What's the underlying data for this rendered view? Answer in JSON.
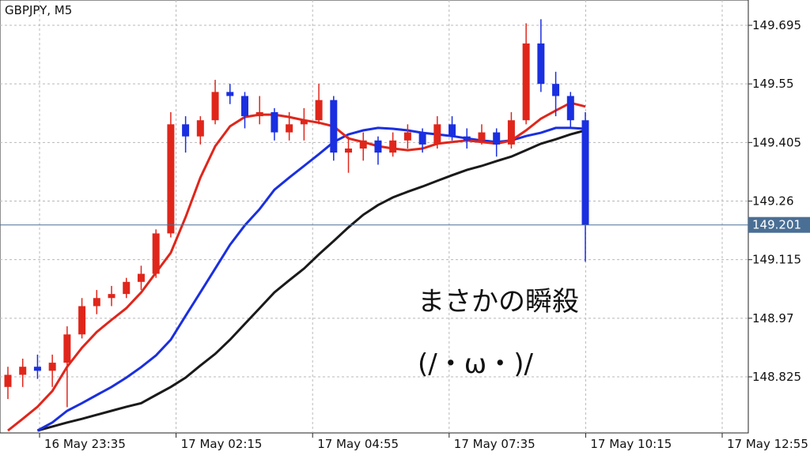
{
  "chart_data": {
    "type": "candlestick",
    "title": "GBPJPY, M5",
    "annotations": [
      "まさかの瞬殺",
      "(/・ω・)/"
    ],
    "ylim": [
      148.6862,
      149.7576
    ],
    "yticks": [
      148.825,
      148.97,
      149.115,
      149.26,
      149.405,
      149.55,
      149.695
    ],
    "last_price": 149.201,
    "x_axis_labels": [
      "16 May 23:35",
      "17 May 02:15",
      "17 May 04:55",
      "17 May 07:35",
      "17 May 10:15",
      "17 May 12:55"
    ],
    "grid": true,
    "up_color": "#e0261b",
    "down_color": "#1a2fe0",
    "candles": {
      "open": [
        148.8,
        148.83,
        148.85,
        148.84,
        148.86,
        148.93,
        149.0,
        149.02,
        149.03,
        149.06,
        149.08,
        149.18,
        149.45,
        149.42,
        149.46,
        149.53,
        149.52,
        149.47,
        149.48,
        149.43,
        149.45,
        149.46,
        149.51,
        149.38,
        149.39,
        149.41,
        149.38,
        149.41,
        149.43,
        149.4,
        149.45,
        149.42,
        149.41,
        149.43,
        149.4,
        149.46,
        149.65,
        149.55,
        149.52,
        149.46
      ],
      "high": [
        148.85,
        148.87,
        148.88,
        148.88,
        148.95,
        149.02,
        149.04,
        149.05,
        149.07,
        149.1,
        149.19,
        149.48,
        149.47,
        149.47,
        149.56,
        149.55,
        149.53,
        149.52,
        149.49,
        149.48,
        149.49,
        149.55,
        149.52,
        149.42,
        149.43,
        149.42,
        149.43,
        149.45,
        149.44,
        149.47,
        149.47,
        149.44,
        149.45,
        149.44,
        149.48,
        149.7,
        149.71,
        149.58,
        149.53,
        149.48
      ],
      "low": [
        148.77,
        148.8,
        148.82,
        148.8,
        148.75,
        148.92,
        148.98,
        149.0,
        149.02,
        149.04,
        149.07,
        149.17,
        149.38,
        149.4,
        149.45,
        149.5,
        149.44,
        149.45,
        149.41,
        149.41,
        149.41,
        149.45,
        149.36,
        149.33,
        149.36,
        149.35,
        149.37,
        149.39,
        149.38,
        149.39,
        149.41,
        149.39,
        149.4,
        149.37,
        149.39,
        149.45,
        149.53,
        149.47,
        149.44,
        149.11
      ],
      "close": [
        148.83,
        148.85,
        148.84,
        148.86,
        148.93,
        149.0,
        149.02,
        149.03,
        149.06,
        149.08,
        149.18,
        149.45,
        149.42,
        149.46,
        149.53,
        149.52,
        149.47,
        149.48,
        149.43,
        149.45,
        149.46,
        149.51,
        149.38,
        149.39,
        149.41,
        149.38,
        149.41,
        149.43,
        149.4,
        149.45,
        149.42,
        149.41,
        149.43,
        149.4,
        149.46,
        149.65,
        149.55,
        149.52,
        149.46,
        149.201
      ]
    },
    "series": [
      {
        "color": "#1a1a1a",
        "values": [
          null,
          null,
          148.692,
          148.702,
          148.712,
          148.721,
          148.731,
          148.741,
          148.751,
          148.76,
          148.78,
          148.8,
          148.823,
          148.853,
          148.882,
          148.917,
          148.956,
          148.995,
          149.034,
          149.064,
          149.093,
          149.128,
          149.161,
          149.195,
          149.226,
          149.25,
          149.269,
          149.283,
          149.296,
          149.31,
          149.324,
          149.337,
          149.347,
          149.359,
          149.37,
          149.386,
          149.402,
          149.413,
          149.425,
          149.435
        ]
      },
      {
        "color": "#1a2fe0",
        "values": [
          null,
          null,
          148.692,
          148.712,
          148.741,
          148.76,
          148.78,
          148.8,
          148.823,
          148.849,
          148.878,
          148.917,
          148.976,
          149.034,
          149.093,
          149.152,
          149.2,
          149.24,
          149.288,
          149.318,
          149.347,
          149.376,
          149.406,
          149.425,
          149.435,
          149.441,
          149.439,
          149.435,
          149.429,
          149.425,
          149.421,
          149.415,
          149.41,
          149.406,
          149.41,
          149.421,
          149.429,
          149.441,
          149.441,
          149.439
        ]
      },
      {
        "color": "#e0261b",
        "values": [
          148.692,
          148.721,
          148.751,
          148.79,
          148.85,
          148.897,
          148.936,
          148.966,
          148.995,
          149.034,
          149.083,
          149.132,
          149.22,
          149.318,
          149.396,
          149.445,
          149.468,
          149.474,
          149.474,
          149.468,
          149.46,
          149.454,
          149.445,
          149.415,
          149.406,
          149.396,
          149.39,
          149.386,
          149.39,
          149.402,
          149.406,
          149.41,
          149.406,
          149.402,
          149.41,
          149.435,
          149.464,
          149.484,
          149.503,
          149.494
        ]
      }
    ]
  }
}
